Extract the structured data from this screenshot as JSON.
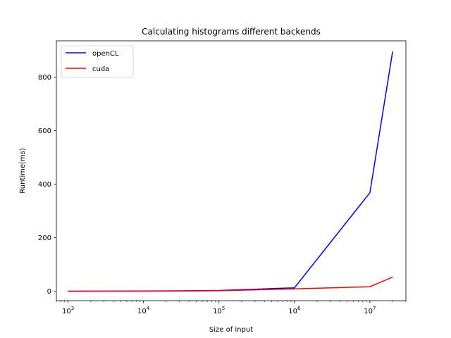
{
  "chart_data": {
    "type": "line",
    "title": "Calculating histograms different backends",
    "xlabel": "Size of input",
    "ylabel": "Runtime(ms)",
    "xscale": "log",
    "xlim": [
      700,
      30000000
    ],
    "ylim": [
      -35,
      935
    ],
    "xticks": [
      {
        "value": 1000,
        "base": "10",
        "exp": "3"
      },
      {
        "value": 10000,
        "base": "10",
        "exp": "4"
      },
      {
        "value": 100000,
        "base": "10",
        "exp": "5"
      },
      {
        "value": 1000000,
        "base": "10",
        "exp": "6"
      },
      {
        "value": 10000000,
        "base": "10",
        "exp": "7"
      }
    ],
    "yticks": [
      {
        "value": 0,
        "label": "0"
      },
      {
        "value": 200,
        "label": "200"
      },
      {
        "value": 400,
        "label": "400"
      },
      {
        "value": 600,
        "label": "600"
      },
      {
        "value": 800,
        "label": "800"
      }
    ],
    "grid": false,
    "legend_position": "top-left",
    "series": [
      {
        "name": "openCL",
        "color": "#0000ff",
        "x": [
          1000,
          10000,
          100000,
          1000000,
          10000000,
          20000000
        ],
        "y": [
          0.5,
          1,
          3,
          13,
          368,
          895
        ]
      },
      {
        "name": "cuda",
        "color": "#ff0000",
        "x": [
          1000,
          10000,
          100000,
          1000000,
          10000000,
          20000000
        ],
        "y": [
          0.3,
          0.5,
          2,
          9,
          17,
          53
        ]
      }
    ]
  }
}
